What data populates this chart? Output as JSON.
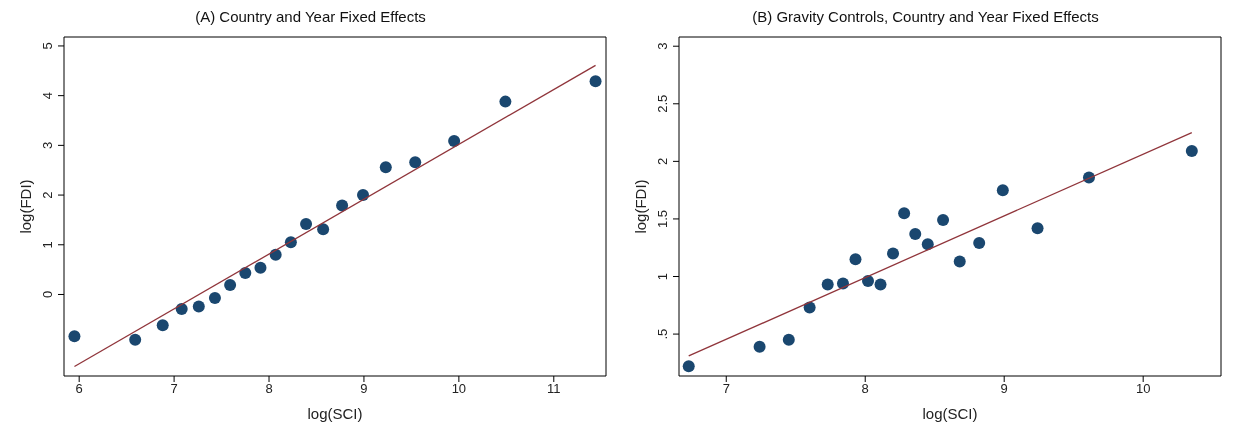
{
  "chart_data": [
    {
      "type": "scatter",
      "title": "(A) Country and Year Fixed Effects",
      "xlabel": "log(SCI)",
      "ylabel": "log(FDI)",
      "marker": "circle",
      "xlim": [
        5.84,
        11.55
      ],
      "ylim": [
        -1.64,
        5.18
      ],
      "xticks": [
        6,
        7,
        8,
        9,
        10,
        11
      ],
      "yticks": [
        0,
        1,
        2,
        3,
        4,
        5
      ],
      "series": [
        {
          "type": "scatter",
          "color": "#1a476f",
          "x": [
            5.95,
            6.59,
            6.88,
            7.08,
            7.26,
            7.43,
            7.59,
            7.75,
            7.91,
            8.07,
            8.23,
            8.39,
            8.57,
            8.77,
            8.99,
            9.23,
            9.54,
            9.95,
            10.49,
            11.44
          ],
          "values": [
            -0.84,
            -0.91,
            -0.62,
            -0.29,
            -0.24,
            -0.07,
            0.19,
            0.43,
            0.54,
            0.8,
            1.05,
            1.42,
            1.31,
            1.79,
            2.0,
            2.56,
            2.66,
            3.09,
            3.88,
            4.29
          ]
        },
        {
          "type": "line",
          "color": "#90353b",
          "marker": "none",
          "x": [
            5.95,
            11.44
          ],
          "values": [
            -1.45,
            4.61
          ]
        }
      ]
    },
    {
      "type": "scatter",
      "title": "(B) Gravity Controls, Country and Year Fixed Effects",
      "xlabel": "log(SCI)",
      "ylabel": "log(FDI)",
      "marker": "circle",
      "xlim": [
        6.66,
        10.56
      ],
      "ylim": [
        0.136,
        3.08
      ],
      "xticks": [
        7,
        8,
        9,
        10
      ],
      "yticks": [
        {
          "value": 0.5,
          "label": ".5"
        },
        1,
        1.5,
        2,
        2.5,
        3
      ],
      "series": [
        {
          "type": "scatter",
          "color": "#1a476f",
          "x": [
            6.73,
            7.24,
            7.45,
            7.6,
            7.73,
            7.84,
            7.93,
            8.02,
            8.11,
            8.2,
            8.28,
            8.36,
            8.45,
            8.56,
            8.68,
            8.82,
            8.99,
            9.24,
            9.61,
            10.35
          ],
          "values": [
            0.22,
            0.39,
            0.45,
            0.73,
            0.93,
            0.94,
            1.15,
            0.96,
            0.93,
            1.2,
            1.55,
            1.37,
            1.28,
            1.49,
            1.13,
            1.29,
            1.75,
            1.42,
            1.86,
            2.09
          ]
        },
        {
          "type": "line",
          "color": "#90353b",
          "marker": "none",
          "x": [
            6.73,
            10.35
          ],
          "values": [
            0.31,
            2.25
          ]
        }
      ]
    }
  ]
}
